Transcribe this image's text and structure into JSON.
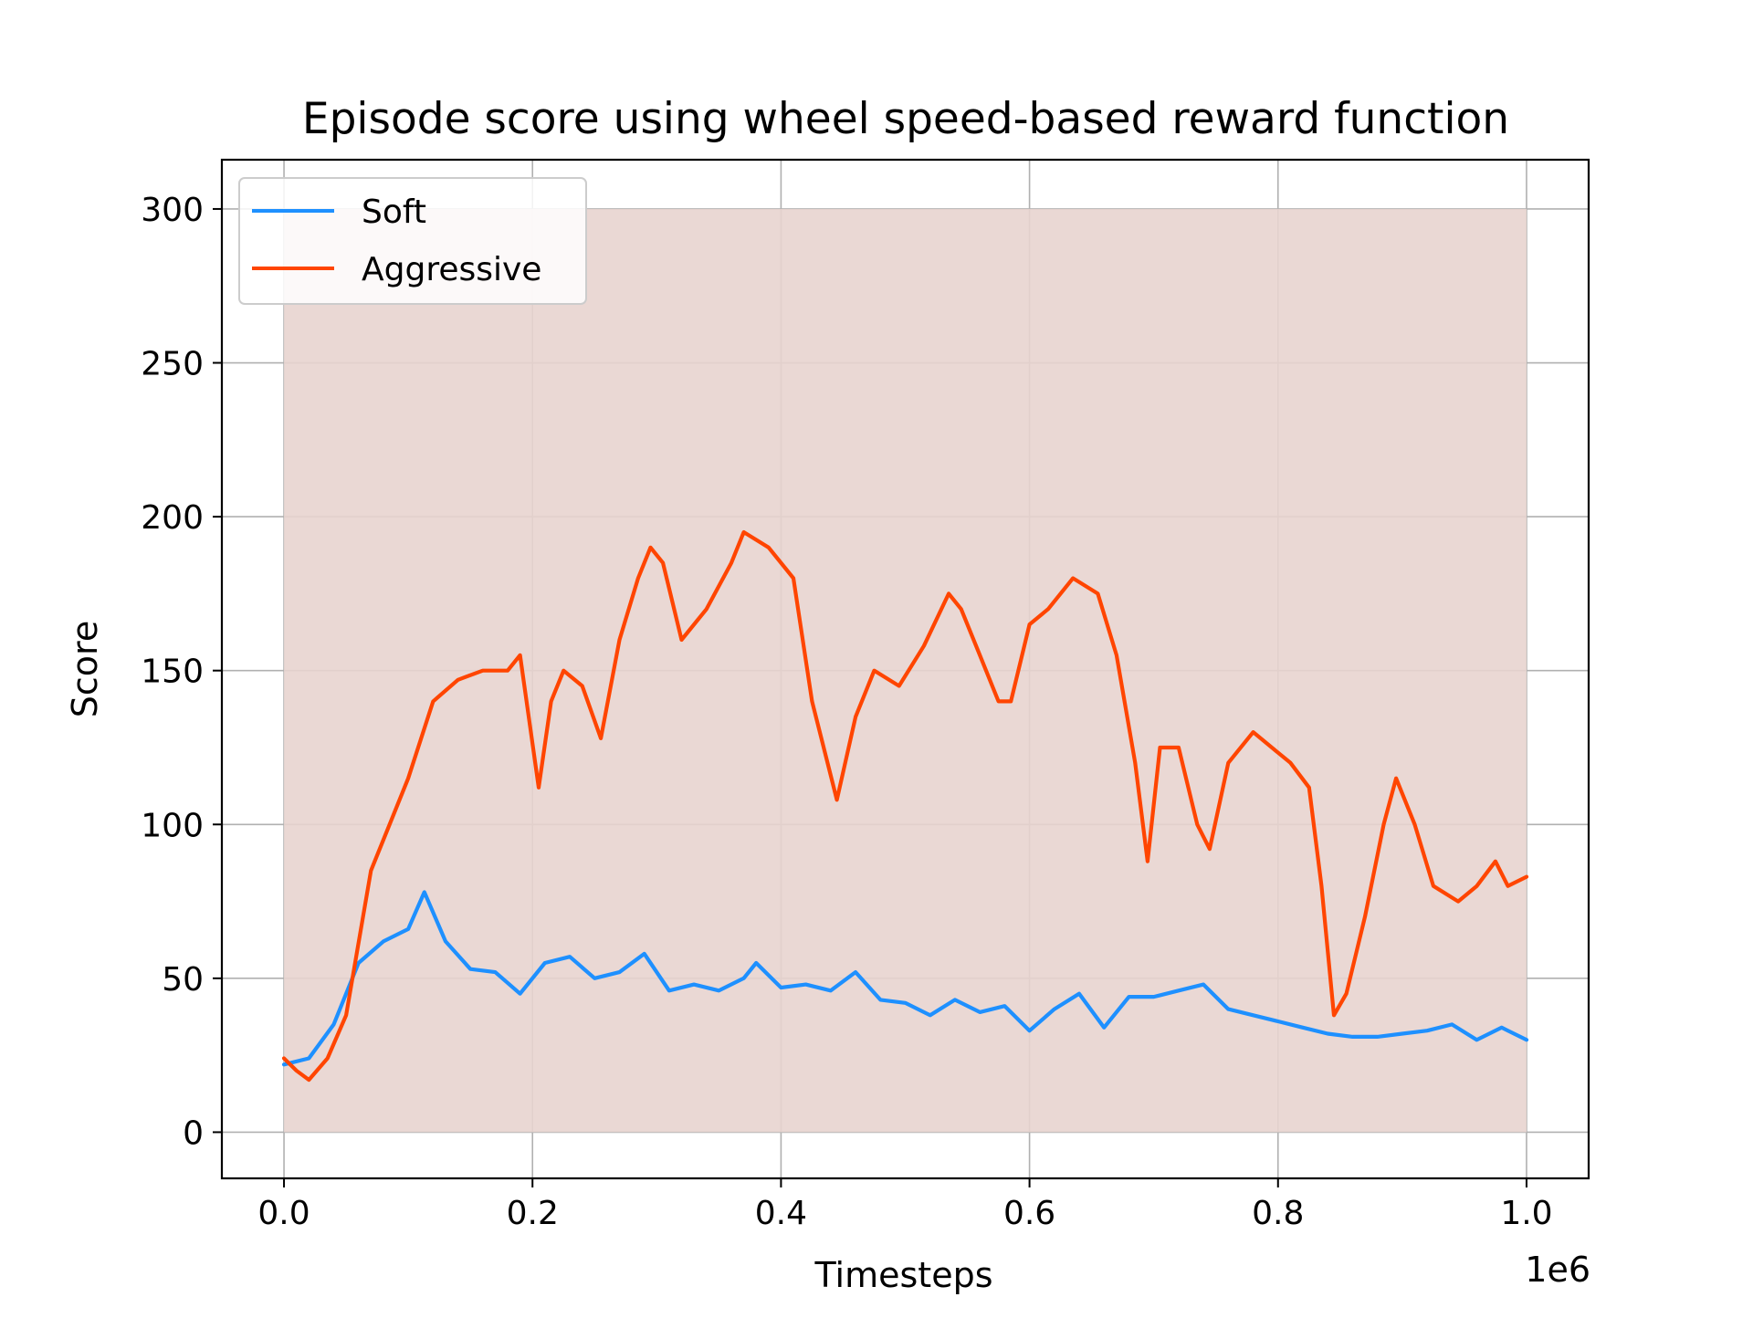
{
  "chart_data": {
    "type": "line",
    "title": "Episode score using wheel speed-based reward function",
    "xlabel": "Timesteps",
    "ylabel": "Score",
    "x_offset_label": "1e6",
    "xlim": [
      -0.05,
      1.05
    ],
    "ylim": [
      -15,
      316
    ],
    "x_ticks": [
      0.0,
      0.2,
      0.4,
      0.6,
      0.8,
      1.0
    ],
    "x_tick_labels": [
      "0.0",
      "0.2",
      "0.4",
      "0.6",
      "0.8",
      "1.0"
    ],
    "y_ticks": [
      0,
      50,
      100,
      150,
      200,
      250,
      300
    ],
    "y_tick_labels": [
      "0",
      "50",
      "100",
      "150",
      "200",
      "250",
      "300"
    ],
    "grid": true,
    "legend": {
      "position": "top-left"
    },
    "series": [
      {
        "name": "Soft",
        "color": "#1e90ff",
        "raw_band_color": "#cfe6fb",
        "raw_band_range": [
          0,
          300
        ],
        "x": [
          0.0,
          0.02,
          0.04,
          0.06,
          0.08,
          0.1,
          0.113,
          0.13,
          0.15,
          0.17,
          0.19,
          0.21,
          0.23,
          0.25,
          0.27,
          0.29,
          0.31,
          0.33,
          0.35,
          0.37,
          0.38,
          0.4,
          0.42,
          0.44,
          0.46,
          0.48,
          0.5,
          0.52,
          0.54,
          0.56,
          0.58,
          0.6,
          0.62,
          0.64,
          0.66,
          0.68,
          0.7,
          0.72,
          0.74,
          0.76,
          0.78,
          0.8,
          0.82,
          0.84,
          0.86,
          0.88,
          0.9,
          0.92,
          0.94,
          0.96,
          0.98,
          1.0
        ],
        "values": [
          22,
          24,
          35,
          55,
          62,
          66,
          78,
          62,
          53,
          52,
          45,
          55,
          57,
          50,
          52,
          58,
          46,
          48,
          46,
          50,
          55,
          47,
          48,
          46,
          52,
          43,
          42,
          38,
          43,
          39,
          41,
          33,
          40,
          45,
          34,
          44,
          44,
          46,
          48,
          40,
          38,
          36,
          34,
          32,
          31,
          31,
          32,
          33,
          35,
          30,
          34,
          30
        ]
      },
      {
        "name": "Aggressive",
        "color": "#ff4500",
        "raw_band_color": "#f3cbb9",
        "raw_band_range": [
          0,
          300
        ],
        "x": [
          0.0,
          0.01,
          0.02,
          0.035,
          0.05,
          0.07,
          0.085,
          0.1,
          0.12,
          0.14,
          0.16,
          0.18,
          0.19,
          0.205,
          0.215,
          0.225,
          0.24,
          0.255,
          0.27,
          0.285,
          0.295,
          0.305,
          0.32,
          0.34,
          0.36,
          0.37,
          0.39,
          0.41,
          0.425,
          0.445,
          0.46,
          0.475,
          0.495,
          0.515,
          0.535,
          0.545,
          0.56,
          0.575,
          0.585,
          0.6,
          0.615,
          0.635,
          0.655,
          0.67,
          0.685,
          0.695,
          0.705,
          0.72,
          0.735,
          0.745,
          0.76,
          0.78,
          0.795,
          0.81,
          0.825,
          0.835,
          0.845,
          0.855,
          0.87,
          0.885,
          0.895,
          0.91,
          0.925,
          0.945,
          0.96,
          0.975,
          0.985,
          1.0
        ],
        "values": [
          24,
          20,
          17,
          24,
          38,
          85,
          100,
          115,
          140,
          147,
          150,
          150,
          155,
          112,
          140,
          150,
          145,
          128,
          160,
          180,
          190,
          185,
          160,
          170,
          185,
          195,
          190,
          180,
          140,
          108,
          135,
          150,
          145,
          158,
          175,
          170,
          155,
          140,
          140,
          165,
          170,
          180,
          175,
          155,
          120,
          88,
          125,
          125,
          100,
          92,
          120,
          130,
          125,
          120,
          112,
          80,
          38,
          45,
          70,
          100,
          115,
          100,
          80,
          75,
          80,
          88,
          80,
          83
        ]
      }
    ]
  }
}
